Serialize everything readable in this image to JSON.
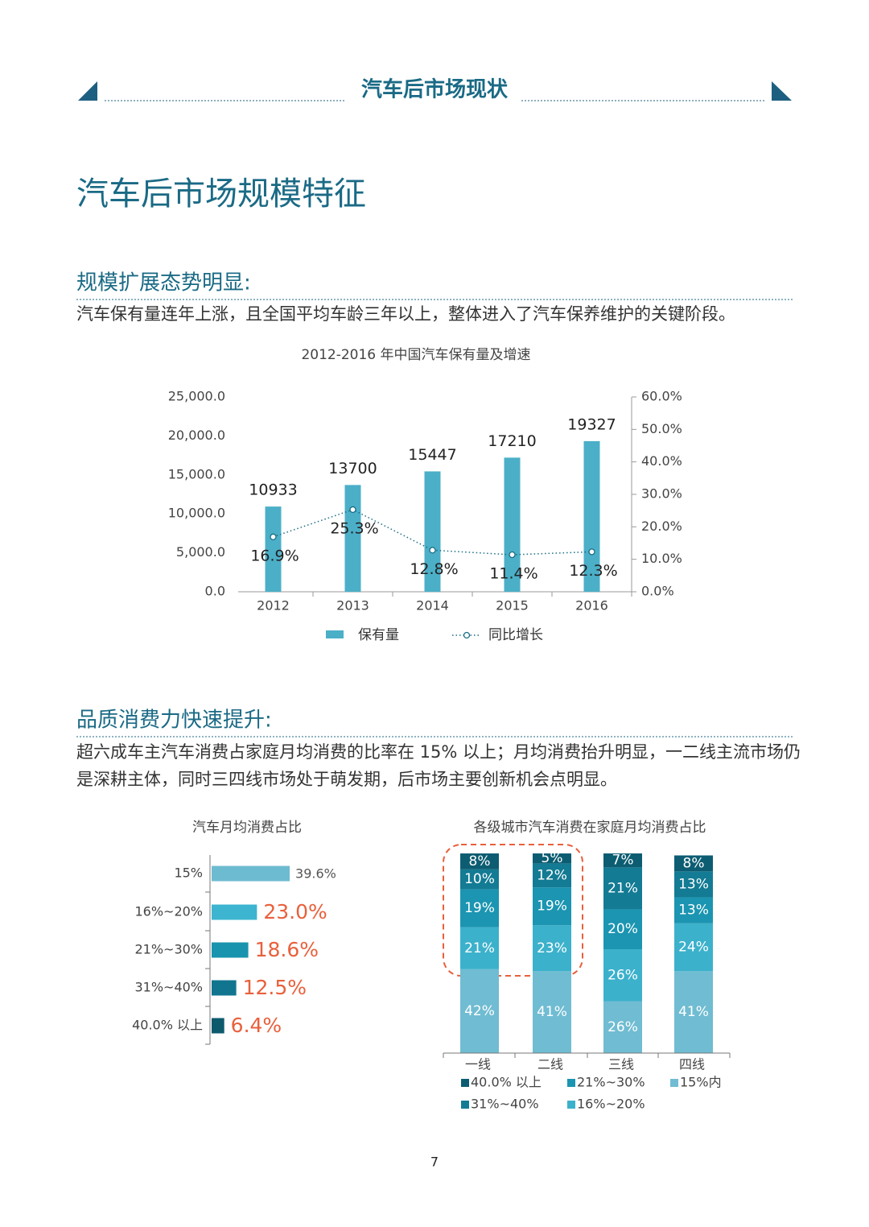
{
  "header": {
    "title": "汽车后市场现状"
  },
  "title": "汽车后市场规模特征",
  "sections": [
    {
      "heading": "规模扩展态势明显:",
      "text": "汽车保有量连年上涨，且全国平均车龄三年以上，整体进入了汽车保养维护的关键阶段。"
    },
    {
      "heading": "品质消费力快速提升:",
      "text": "超六成车主汽车消费占家庭月均消费的比率在 15% 以上；月均消费抬升明显，一二线主流市场仍是深耕主体，同时三四线市场处于萌发期，后市场主要创新机会点明显。"
    }
  ],
  "chart_data": [
    {
      "type": "bar-line",
      "title": "2012-2016 年中国汽车保有量及增速",
      "categories": [
        "2012",
        "2013",
        "2014",
        "2015",
        "2016"
      ],
      "series": [
        {
          "name": "保有量",
          "type": "bar",
          "color": "#4bafc8",
          "values": [
            10933,
            13700,
            15447,
            17210,
            19327
          ]
        },
        {
          "name": "同比增长",
          "type": "line",
          "axis": "y2",
          "color": "#1a6e85",
          "values": [
            16.9,
            25.3,
            12.8,
            11.4,
            12.3
          ],
          "value_labels": [
            "16.9%",
            "25.3%",
            "12.8%",
            "11.4%",
            "12.3%"
          ]
        }
      ],
      "ylim": [
        0,
        25000
      ],
      "yticks": [
        {
          "value": 0,
          "label": "0.0"
        },
        {
          "value": 5000,
          "label": "5,000.0"
        },
        {
          "value": 10000,
          "label": "10,000.0"
        },
        {
          "value": 15000,
          "label": "15,000.0"
        },
        {
          "value": 20000,
          "label": "20,000.0"
        },
        {
          "value": 25000,
          "label": "25,000.0"
        }
      ],
      "y2lim": [
        0,
        60
      ],
      "y2ticks": [
        {
          "value": 0,
          "label": "0.0%"
        },
        {
          "value": 10,
          "label": "10.0%"
        },
        {
          "value": 20,
          "label": "20.0%"
        },
        {
          "value": 30,
          "label": "30.0%"
        },
        {
          "value": 40,
          "label": "40.0%"
        },
        {
          "value": 50,
          "label": "50.0%"
        },
        {
          "value": 60,
          "label": "60.0%"
        }
      ]
    },
    {
      "type": "hbar",
      "title": "汽车月均消费占比",
      "categories": [
        "15%",
        "16%~20%",
        "21%~30%",
        "31%~40%",
        "40.0% 以上"
      ],
      "values": [
        39.6,
        23.0,
        18.6,
        12.5,
        6.4
      ],
      "value_labels": [
        "39.6%",
        "23.0%",
        "18.6%",
        "12.5%",
        "6.4%"
      ],
      "colors": [
        "#6dbbd1",
        "#3db4d0",
        "#1994ae",
        "#117590",
        "#0d5a6c"
      ]
    },
    {
      "type": "stacked-bar",
      "title": "各级城市汽车消费在家庭月均消费占比",
      "categories": [
        "一线",
        "二线",
        "三线",
        "四线"
      ],
      "series": [
        {
          "name": "15%内",
          "color": "#70bcd2",
          "values": [
            42,
            41,
            26,
            41
          ],
          "value_labels": [
            "42%",
            "41%",
            "26%",
            "41%"
          ]
        },
        {
          "name": "16%~20%",
          "color": "#3cb1cc",
          "values": [
            21,
            23,
            26,
            24
          ],
          "value_labels": [
            "21%",
            "23%",
            "26%",
            "24%"
          ]
        },
        {
          "name": "21%~30%",
          "color": "#1b95b1",
          "values": [
            19,
            19,
            20,
            13
          ],
          "value_labels": [
            "19%",
            "19%",
            "20%",
            "13%"
          ]
        },
        {
          "name": "31%~40%",
          "color": "#137b94",
          "values": [
            10,
            12,
            21,
            13
          ],
          "value_labels": [
            "10%",
            "12%",
            "21%",
            "13%"
          ]
        },
        {
          "name": "40.0% 以上",
          "color": "#0d5d72",
          "values": [
            8,
            5,
            7,
            8
          ],
          "value_labels": [
            "8%",
            "5%",
            "7%",
            "8%"
          ]
        }
      ]
    }
  ],
  "page_number": "7"
}
